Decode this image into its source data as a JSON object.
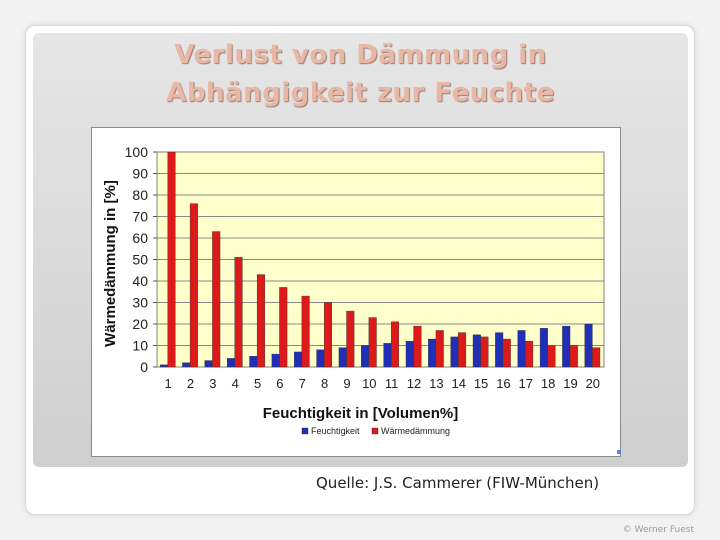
{
  "slide": {
    "title_line1": "Verlust von Dämmung in",
    "title_line2": "Abhängigkeit zur Feuchte",
    "source": "Quelle: J.S. Cammerer (FIW-München)",
    "footer": "© Werner Fuest"
  },
  "chart_data": {
    "type": "bar",
    "categories": [
      "1",
      "2",
      "3",
      "4",
      "5",
      "6",
      "7",
      "8",
      "9",
      "10",
      "11",
      "12",
      "13",
      "14",
      "15",
      "16",
      "17",
      "18",
      "19",
      "20"
    ],
    "series": [
      {
        "name": "Feuchtigkeit",
        "color": "#1f2fb8",
        "values": [
          1,
          2,
          3,
          4,
          5,
          6,
          7,
          8,
          9,
          10,
          11,
          12,
          13,
          14,
          15,
          16,
          17,
          18,
          19,
          20
        ]
      },
      {
        "name": "Wärmedämmung",
        "color": "#dd1a1a",
        "values": [
          100,
          76,
          63,
          51,
          43,
          37,
          33,
          30,
          26,
          23,
          21,
          19,
          17,
          16,
          14,
          13,
          12,
          10,
          10,
          9
        ]
      }
    ],
    "xlabel": "Feuchtigkeit in [Volumen%]",
    "ylabel": "Wärmedämmung in [%]",
    "ylim": [
      0,
      100
    ],
    "yticks": [
      0,
      10,
      20,
      30,
      40,
      50,
      60,
      70,
      80,
      90,
      100
    ],
    "grid": true,
    "plot_background": "#ffffcc",
    "legend_position": "bottom-right"
  }
}
